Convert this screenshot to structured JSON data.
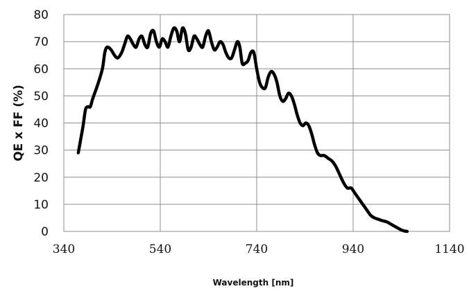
{
  "chart_data": {
    "type": "line",
    "xlabel": "Wavelength [nm]",
    "ylabel": "QE x FF (%)",
    "xlim": [
      340,
      1140
    ],
    "ylim": [
      0,
      80
    ],
    "x_ticks": [
      340,
      540,
      740,
      940,
      1140
    ],
    "y_ticks": [
      0,
      10,
      20,
      30,
      40,
      50,
      60,
      70,
      80
    ],
    "grid": true,
    "series": [
      {
        "points": [
          [
            370,
            29
          ],
          [
            375,
            34
          ],
          [
            380,
            39
          ],
          [
            385,
            45
          ],
          [
            390,
            46
          ],
          [
            395,
            46
          ],
          [
            400,
            49
          ],
          [
            410,
            54
          ],
          [
            420,
            60
          ],
          [
            425,
            66
          ],
          [
            430,
            68
          ],
          [
            438,
            67
          ],
          [
            445,
            65
          ],
          [
            452,
            64
          ],
          [
            460,
            66
          ],
          [
            466,
            69
          ],
          [
            472,
            72
          ],
          [
            478,
            71
          ],
          [
            484,
            69
          ],
          [
            490,
            68
          ],
          [
            496,
            71
          ],
          [
            502,
            72
          ],
          [
            508,
            69
          ],
          [
            514,
            68
          ],
          [
            520,
            73
          ],
          [
            526,
            74
          ],
          [
            532,
            70
          ],
          [
            538,
            68
          ],
          [
            544,
            71
          ],
          [
            550,
            70
          ],
          [
            556,
            68
          ],
          [
            562,
            72
          ],
          [
            568,
            75
          ],
          [
            574,
            74
          ],
          [
            580,
            70
          ],
          [
            586,
            75
          ],
          [
            592,
            73
          ],
          [
            598,
            67
          ],
          [
            604,
            68
          ],
          [
            610,
            72
          ],
          [
            616,
            71
          ],
          [
            622,
            69
          ],
          [
            628,
            68
          ],
          [
            634,
            72
          ],
          [
            640,
            74
          ],
          [
            646,
            70
          ],
          [
            652,
            67
          ],
          [
            658,
            68
          ],
          [
            664,
            70
          ],
          [
            670,
            69
          ],
          [
            676,
            66
          ],
          [
            682,
            64
          ],
          [
            688,
            64
          ],
          [
            694,
            67
          ],
          [
            700,
            70
          ],
          [
            705,
            68
          ],
          [
            710,
            62
          ],
          [
            716,
            62
          ],
          [
            722,
            63
          ],
          [
            728,
            66
          ],
          [
            734,
            66
          ],
          [
            740,
            60
          ],
          [
            746,
            55
          ],
          [
            752,
            53
          ],
          [
            758,
            53
          ],
          [
            764,
            57
          ],
          [
            770,
            59
          ],
          [
            776,
            58
          ],
          [
            782,
            55
          ],
          [
            788,
            50
          ],
          [
            794,
            48
          ],
          [
            800,
            49
          ],
          [
            806,
            51
          ],
          [
            812,
            50
          ],
          [
            818,
            47
          ],
          [
            824,
            43
          ],
          [
            830,
            40
          ],
          [
            836,
            39
          ],
          [
            842,
            40
          ],
          [
            848,
            39
          ],
          [
            854,
            36
          ],
          [
            860,
            32
          ],
          [
            866,
            29
          ],
          [
            872,
            28
          ],
          [
            880,
            28
          ],
          [
            888,
            27
          ],
          [
            896,
            26
          ],
          [
            904,
            24
          ],
          [
            912,
            21
          ],
          [
            920,
            18
          ],
          [
            928,
            16
          ],
          [
            936,
            16
          ],
          [
            944,
            14
          ],
          [
            952,
            12
          ],
          [
            960,
            10
          ],
          [
            968,
            8
          ],
          [
            976,
            6
          ],
          [
            984,
            5
          ],
          [
            992,
            4.5
          ],
          [
            1000,
            4
          ],
          [
            1010,
            3.5
          ],
          [
            1020,
            2.5
          ],
          [
            1030,
            1.5
          ],
          [
            1038,
            0.7
          ],
          [
            1045,
            0.2
          ],
          [
            1052,
            0
          ]
        ]
      }
    ]
  }
}
